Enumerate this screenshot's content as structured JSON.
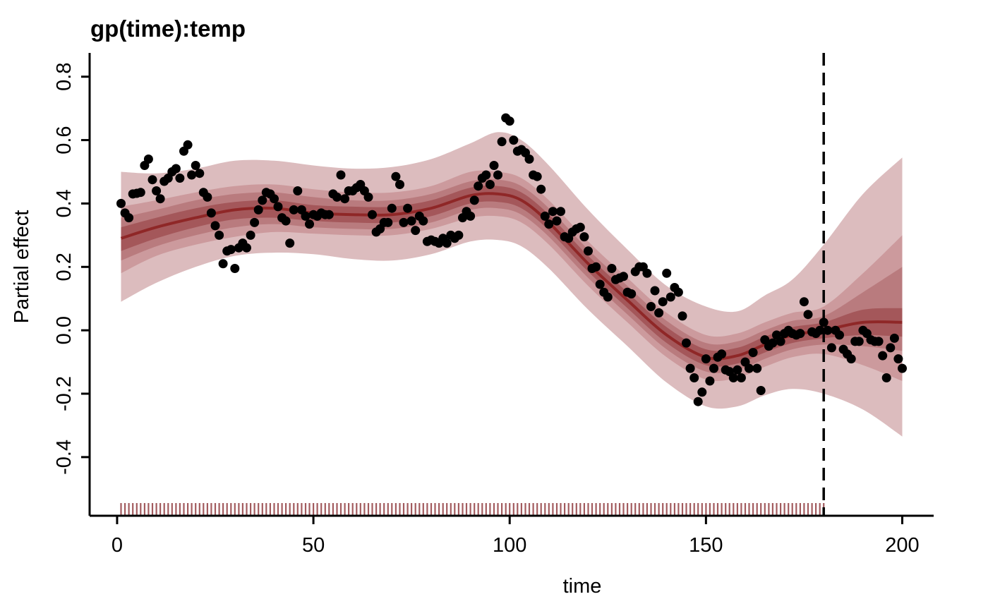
{
  "chart_data": {
    "type": "line",
    "title": "gp(time):temp",
    "xlabel": "time",
    "ylabel": "Partial effect",
    "xlim": [
      -7,
      208
    ],
    "ylim": [
      -0.585,
      0.875
    ],
    "x_ticks": [
      "0",
      "50",
      "100",
      "150",
      "200"
    ],
    "y_ticks": [
      "-0.4",
      "-0.2",
      "0.0",
      "0.2",
      "0.4",
      "0.6",
      "0.8"
    ],
    "train_end": 180,
    "rug_range": [
      1,
      180
    ],
    "colors": {
      "band_outer": "#DCBCBE",
      "band_2": "#CC9A9D",
      "band_3": "#B97B7E",
      "band_inner": "#A4575A",
      "median": "#8F2727",
      "points": "#000000",
      "rug": "#A25B5E",
      "axis": "#000000"
    },
    "bands": {
      "x": [
        1,
        10,
        20,
        30,
        40,
        50,
        60,
        70,
        80,
        90,
        97,
        103,
        110,
        120,
        130,
        140,
        150,
        158,
        165,
        172,
        180,
        190,
        200
      ],
      "median": [
        0.29,
        0.325,
        0.355,
        0.38,
        0.385,
        0.37,
        0.365,
        0.365,
        0.385,
        0.425,
        0.43,
        0.41,
        0.34,
        0.21,
        0.095,
        -0.015,
        -0.085,
        -0.08,
        -0.045,
        -0.015,
        0.0,
        0.025,
        0.025
      ],
      "b1_lo": [
        0.25,
        0.29,
        0.325,
        0.35,
        0.355,
        0.345,
        0.34,
        0.34,
        0.36,
        0.4,
        0.405,
        0.385,
        0.315,
        0.185,
        0.07,
        -0.04,
        -0.11,
        -0.105,
        -0.07,
        -0.04,
        -0.025,
        -0.015,
        -0.02
      ],
      "b1_hi": [
        0.325,
        0.355,
        0.385,
        0.405,
        0.41,
        0.395,
        0.39,
        0.39,
        0.41,
        0.45,
        0.455,
        0.435,
        0.365,
        0.235,
        0.12,
        0.01,
        -0.06,
        -0.055,
        -0.02,
        0.01,
        0.025,
        0.065,
        0.07
      ],
      "b2_lo": [
        0.22,
        0.265,
        0.3,
        0.325,
        0.335,
        0.325,
        0.32,
        0.32,
        0.34,
        0.38,
        0.385,
        0.365,
        0.295,
        0.165,
        0.05,
        -0.06,
        -0.13,
        -0.125,
        -0.09,
        -0.06,
        -0.045,
        -0.05,
        -0.065
      ],
      "b2_hi": [
        0.355,
        0.38,
        0.41,
        0.43,
        0.435,
        0.42,
        0.41,
        0.41,
        0.43,
        0.47,
        0.475,
        0.455,
        0.385,
        0.255,
        0.14,
        0.03,
        -0.04,
        -0.035,
        0.0,
        0.03,
        0.045,
        0.12,
        0.2
      ],
      "b3_lo": [
        0.18,
        0.235,
        0.27,
        0.295,
        0.31,
        0.305,
        0.3,
        0.3,
        0.32,
        0.355,
        0.36,
        0.34,
        0.27,
        0.14,
        0.025,
        -0.085,
        -0.155,
        -0.15,
        -0.115,
        -0.085,
        -0.075,
        -0.11,
        -0.16
      ],
      "b3_hi": [
        0.39,
        0.41,
        0.435,
        0.455,
        0.46,
        0.445,
        0.435,
        0.435,
        0.455,
        0.5,
        0.5,
        0.48,
        0.41,
        0.28,
        0.165,
        0.055,
        -0.015,
        -0.01,
        0.025,
        0.055,
        0.075,
        0.18,
        0.3
      ],
      "b4_lo": [
        0.09,
        0.15,
        0.2,
        0.235,
        0.245,
        0.24,
        0.225,
        0.22,
        0.24,
        0.28,
        0.285,
        0.265,
        0.195,
        0.065,
        -0.05,
        -0.165,
        -0.24,
        -0.24,
        -0.205,
        -0.185,
        -0.2,
        -0.25,
        -0.335
      ],
      "b4_hi": [
        0.5,
        0.495,
        0.51,
        0.535,
        0.535,
        0.52,
        0.51,
        0.515,
        0.54,
        0.59,
        0.625,
        0.6,
        0.52,
        0.38,
        0.255,
        0.14,
        0.075,
        0.06,
        0.11,
        0.16,
        0.27,
        0.43,
        0.545
      ]
    },
    "points": {
      "x": [
        1,
        2,
        3,
        4,
        5,
        6,
        7,
        8,
        9,
        10,
        11,
        12,
        13,
        14,
        15,
        16,
        17,
        18,
        19,
        20,
        21,
        22,
        23,
        24,
        25,
        26,
        27,
        28,
        29,
        30,
        31,
        32,
        33,
        34,
        35,
        36,
        37,
        38,
        39,
        40,
        41,
        42,
        43,
        44,
        45,
        46,
        47,
        48,
        49,
        50,
        51,
        52,
        53,
        54,
        55,
        56,
        57,
        58,
        59,
        60,
        61,
        62,
        63,
        64,
        65,
        66,
        67,
        68,
        69,
        70,
        71,
        72,
        73,
        74,
        75,
        76,
        77,
        78,
        79,
        80,
        81,
        82,
        83,
        84,
        85,
        86,
        87,
        88,
        89,
        90,
        91,
        92,
        93,
        94,
        95,
        96,
        97,
        98,
        99,
        100,
        101,
        102,
        103,
        104,
        105,
        106,
        107,
        108,
        109,
        110,
        111,
        112,
        113,
        114,
        115,
        116,
        117,
        118,
        119,
        120,
        121,
        122,
        123,
        124,
        125,
        126,
        127,
        128,
        129,
        130,
        131,
        132,
        133,
        134,
        135,
        136,
        137,
        138,
        139,
        140,
        141,
        142,
        143,
        144,
        145,
        146,
        147,
        148,
        149,
        150,
        151,
        152,
        153,
        154,
        155,
        156,
        157,
        158,
        159,
        160,
        161,
        162,
        163,
        164,
        165,
        166,
        167,
        168,
        169,
        170,
        171,
        172,
        173,
        174,
        175,
        176,
        177,
        178,
        179,
        180,
        181,
        182,
        183,
        184,
        185,
        186,
        187,
        188,
        189,
        190,
        191,
        192,
        193,
        194,
        195,
        196,
        197,
        198,
        199,
        200
      ],
      "y": [
        0.4,
        0.37,
        0.355,
        0.43,
        0.432,
        0.435,
        0.52,
        0.54,
        0.475,
        0.44,
        0.415,
        0.47,
        0.48,
        0.5,
        0.51,
        0.48,
        0.565,
        0.585,
        0.49,
        0.52,
        0.495,
        0.435,
        0.42,
        0.37,
        0.33,
        0.3,
        0.21,
        0.25,
        0.255,
        0.195,
        0.26,
        0.275,
        0.26,
        0.3,
        0.34,
        0.38,
        0.41,
        0.435,
        0.43,
        0.415,
        0.39,
        0.355,
        0.345,
        0.275,
        0.38,
        0.44,
        0.38,
        0.36,
        0.335,
        0.365,
        0.36,
        0.37,
        0.365,
        0.365,
        0.43,
        0.42,
        0.49,
        0.415,
        0.44,
        0.44,
        0.45,
        0.46,
        0.44,
        0.42,
        0.365,
        0.31,
        0.32,
        0.34,
        0.34,
        0.385,
        0.485,
        0.46,
        0.34,
        0.385,
        0.345,
        0.315,
        0.36,
        0.345,
        0.28,
        0.285,
        0.28,
        0.275,
        0.29,
        0.275,
        0.3,
        0.29,
        0.3,
        0.355,
        0.375,
        0.36,
        0.41,
        0.455,
        0.48,
        0.49,
        0.46,
        0.52,
        0.49,
        0.595,
        0.67,
        0.66,
        0.6,
        0.565,
        0.57,
        0.56,
        0.54,
        0.49,
        0.485,
        0.445,
        0.36,
        0.335,
        0.375,
        0.345,
        0.375,
        0.295,
        0.29,
        0.31,
        0.32,
        0.325,
        0.295,
        0.25,
        0.195,
        0.2,
        0.145,
        0.12,
        0.105,
        0.195,
        0.16,
        0.165,
        0.17,
        0.12,
        0.115,
        0.185,
        0.2,
        0.2,
        0.18,
        0.075,
        0.125,
        0.055,
        0.09,
        0.18,
        0.105,
        0.135,
        0.12,
        0.045,
        -0.04,
        -0.12,
        -0.15,
        -0.225,
        -0.195,
        -0.09,
        -0.16,
        -0.12,
        -0.085,
        -0.075,
        -0.125,
        -0.13,
        -0.15,
        -0.125,
        -0.15,
        -0.1,
        -0.12,
        -0.07,
        -0.12,
        -0.19,
        -0.03,
        -0.05,
        -0.04,
        -0.015,
        -0.035,
        -0.01,
        0.0,
        -0.01,
        -0.015,
        -0.01,
        0.09,
        0.05,
        -0.005,
        -0.01,
        0.0,
        0.025,
        0.0,
        -0.055,
        0.0,
        -0.015,
        -0.06,
        -0.075,
        -0.09,
        -0.035,
        -0.035,
        0.0,
        -0.01,
        -0.03,
        -0.035,
        -0.035,
        -0.08,
        -0.15,
        -0.055,
        -0.025,
        -0.09,
        -0.12
      ]
    }
  }
}
